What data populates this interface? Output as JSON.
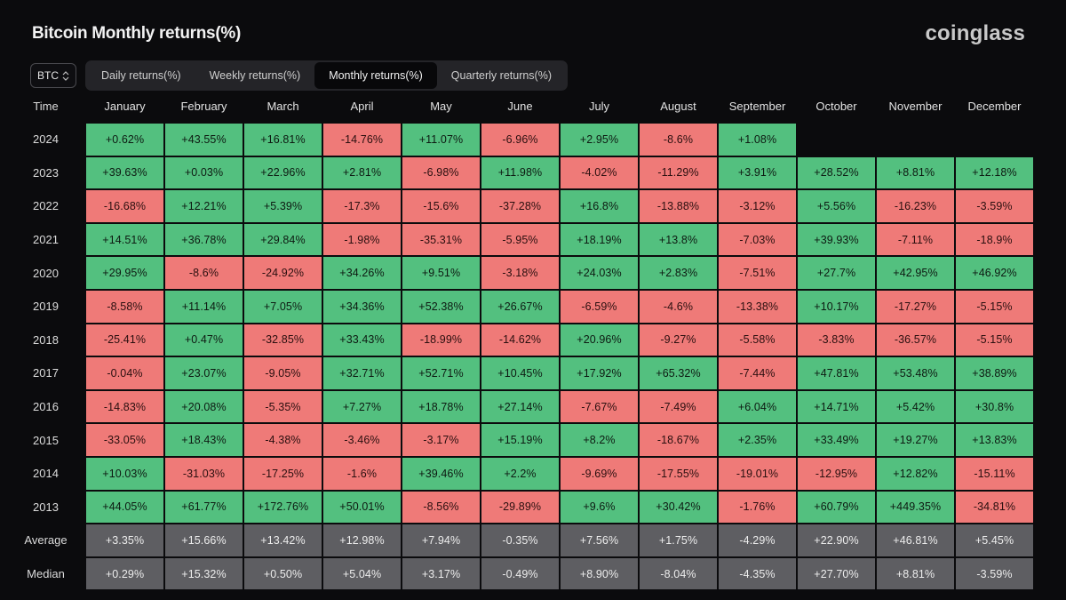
{
  "page": {
    "title": "Bitcoin Monthly returns(%)",
    "logo": "coinglass"
  },
  "colors": {
    "positive": "#53c07f",
    "negative": "#ef7a78",
    "summary": "#5e5e62",
    "background": "#0b0b0d"
  },
  "asset_select": {
    "value": "BTC",
    "icon": "chevron-up-down-icon"
  },
  "tabs": [
    {
      "label": "Daily returns(%)",
      "active": false
    },
    {
      "label": "Weekly returns(%)",
      "active": false
    },
    {
      "label": "Monthly returns(%)",
      "active": true
    },
    {
      "label": "Quarterly returns(%)",
      "active": false
    }
  ],
  "table": {
    "corner_label": "Time",
    "months": [
      "January",
      "February",
      "March",
      "April",
      "May",
      "June",
      "July",
      "August",
      "September",
      "October",
      "November",
      "December"
    ],
    "rows": [
      {
        "label": "2024",
        "values": [
          "+0.62%",
          "+43.55%",
          "+16.81%",
          "-14.76%",
          "+11.07%",
          "-6.96%",
          "+2.95%",
          "-8.6%",
          "+1.08%",
          "",
          "",
          ""
        ]
      },
      {
        "label": "2023",
        "values": [
          "+39.63%",
          "+0.03%",
          "+22.96%",
          "+2.81%",
          "-6.98%",
          "+11.98%",
          "-4.02%",
          "-11.29%",
          "+3.91%",
          "+28.52%",
          "+8.81%",
          "+12.18%"
        ]
      },
      {
        "label": "2022",
        "values": [
          "-16.68%",
          "+12.21%",
          "+5.39%",
          "-17.3%",
          "-15.6%",
          "-37.28%",
          "+16.8%",
          "-13.88%",
          "-3.12%",
          "+5.56%",
          "-16.23%",
          "-3.59%"
        ]
      },
      {
        "label": "2021",
        "values": [
          "+14.51%",
          "+36.78%",
          "+29.84%",
          "-1.98%",
          "-35.31%",
          "-5.95%",
          "+18.19%",
          "+13.8%",
          "-7.03%",
          "+39.93%",
          "-7.11%",
          "-18.9%"
        ]
      },
      {
        "label": "2020",
        "values": [
          "+29.95%",
          "-8.6%",
          "-24.92%",
          "+34.26%",
          "+9.51%",
          "-3.18%",
          "+24.03%",
          "+2.83%",
          "-7.51%",
          "+27.7%",
          "+42.95%",
          "+46.92%"
        ]
      },
      {
        "label": "2019",
        "values": [
          "-8.58%",
          "+11.14%",
          "+7.05%",
          "+34.36%",
          "+52.38%",
          "+26.67%",
          "-6.59%",
          "-4.6%",
          "-13.38%",
          "+10.17%",
          "-17.27%",
          "-5.15%"
        ]
      },
      {
        "label": "2018",
        "values": [
          "-25.41%",
          "+0.47%",
          "-32.85%",
          "+33.43%",
          "-18.99%",
          "-14.62%",
          "+20.96%",
          "-9.27%",
          "-5.58%",
          "-3.83%",
          "-36.57%",
          "-5.15%"
        ]
      },
      {
        "label": "2017",
        "values": [
          "-0.04%",
          "+23.07%",
          "-9.05%",
          "+32.71%",
          "+52.71%",
          "+10.45%",
          "+17.92%",
          "+65.32%",
          "-7.44%",
          "+47.81%",
          "+53.48%",
          "+38.89%"
        ]
      },
      {
        "label": "2016",
        "values": [
          "-14.83%",
          "+20.08%",
          "-5.35%",
          "+7.27%",
          "+18.78%",
          "+27.14%",
          "-7.67%",
          "-7.49%",
          "+6.04%",
          "+14.71%",
          "+5.42%",
          "+30.8%"
        ]
      },
      {
        "label": "2015",
        "values": [
          "-33.05%",
          "+18.43%",
          "-4.38%",
          "-3.46%",
          "-3.17%",
          "+15.19%",
          "+8.2%",
          "-18.67%",
          "+2.35%",
          "+33.49%",
          "+19.27%",
          "+13.83%"
        ]
      },
      {
        "label": "2014",
        "values": [
          "+10.03%",
          "-31.03%",
          "-17.25%",
          "-1.6%",
          "+39.46%",
          "+2.2%",
          "-9.69%",
          "-17.55%",
          "-19.01%",
          "-12.95%",
          "+12.82%",
          "-15.11%"
        ]
      },
      {
        "label": "2013",
        "values": [
          "+44.05%",
          "+61.77%",
          "+172.76%",
          "+50.01%",
          "-8.56%",
          "-29.89%",
          "+9.6%",
          "+30.42%",
          "-1.76%",
          "+60.79%",
          "+449.35%",
          "-34.81%"
        ]
      }
    ],
    "summary": [
      {
        "label": "Average",
        "values": [
          "+3.35%",
          "+15.66%",
          "+13.42%",
          "+12.98%",
          "+7.94%",
          "-0.35%",
          "+7.56%",
          "+1.75%",
          "-4.29%",
          "+22.90%",
          "+46.81%",
          "+5.45%"
        ]
      },
      {
        "label": "Median",
        "values": [
          "+0.29%",
          "+15.32%",
          "+0.50%",
          "+5.04%",
          "+3.17%",
          "-0.49%",
          "+8.90%",
          "-8.04%",
          "-4.35%",
          "+27.70%",
          "+8.81%",
          "-3.59%"
        ]
      }
    ]
  }
}
